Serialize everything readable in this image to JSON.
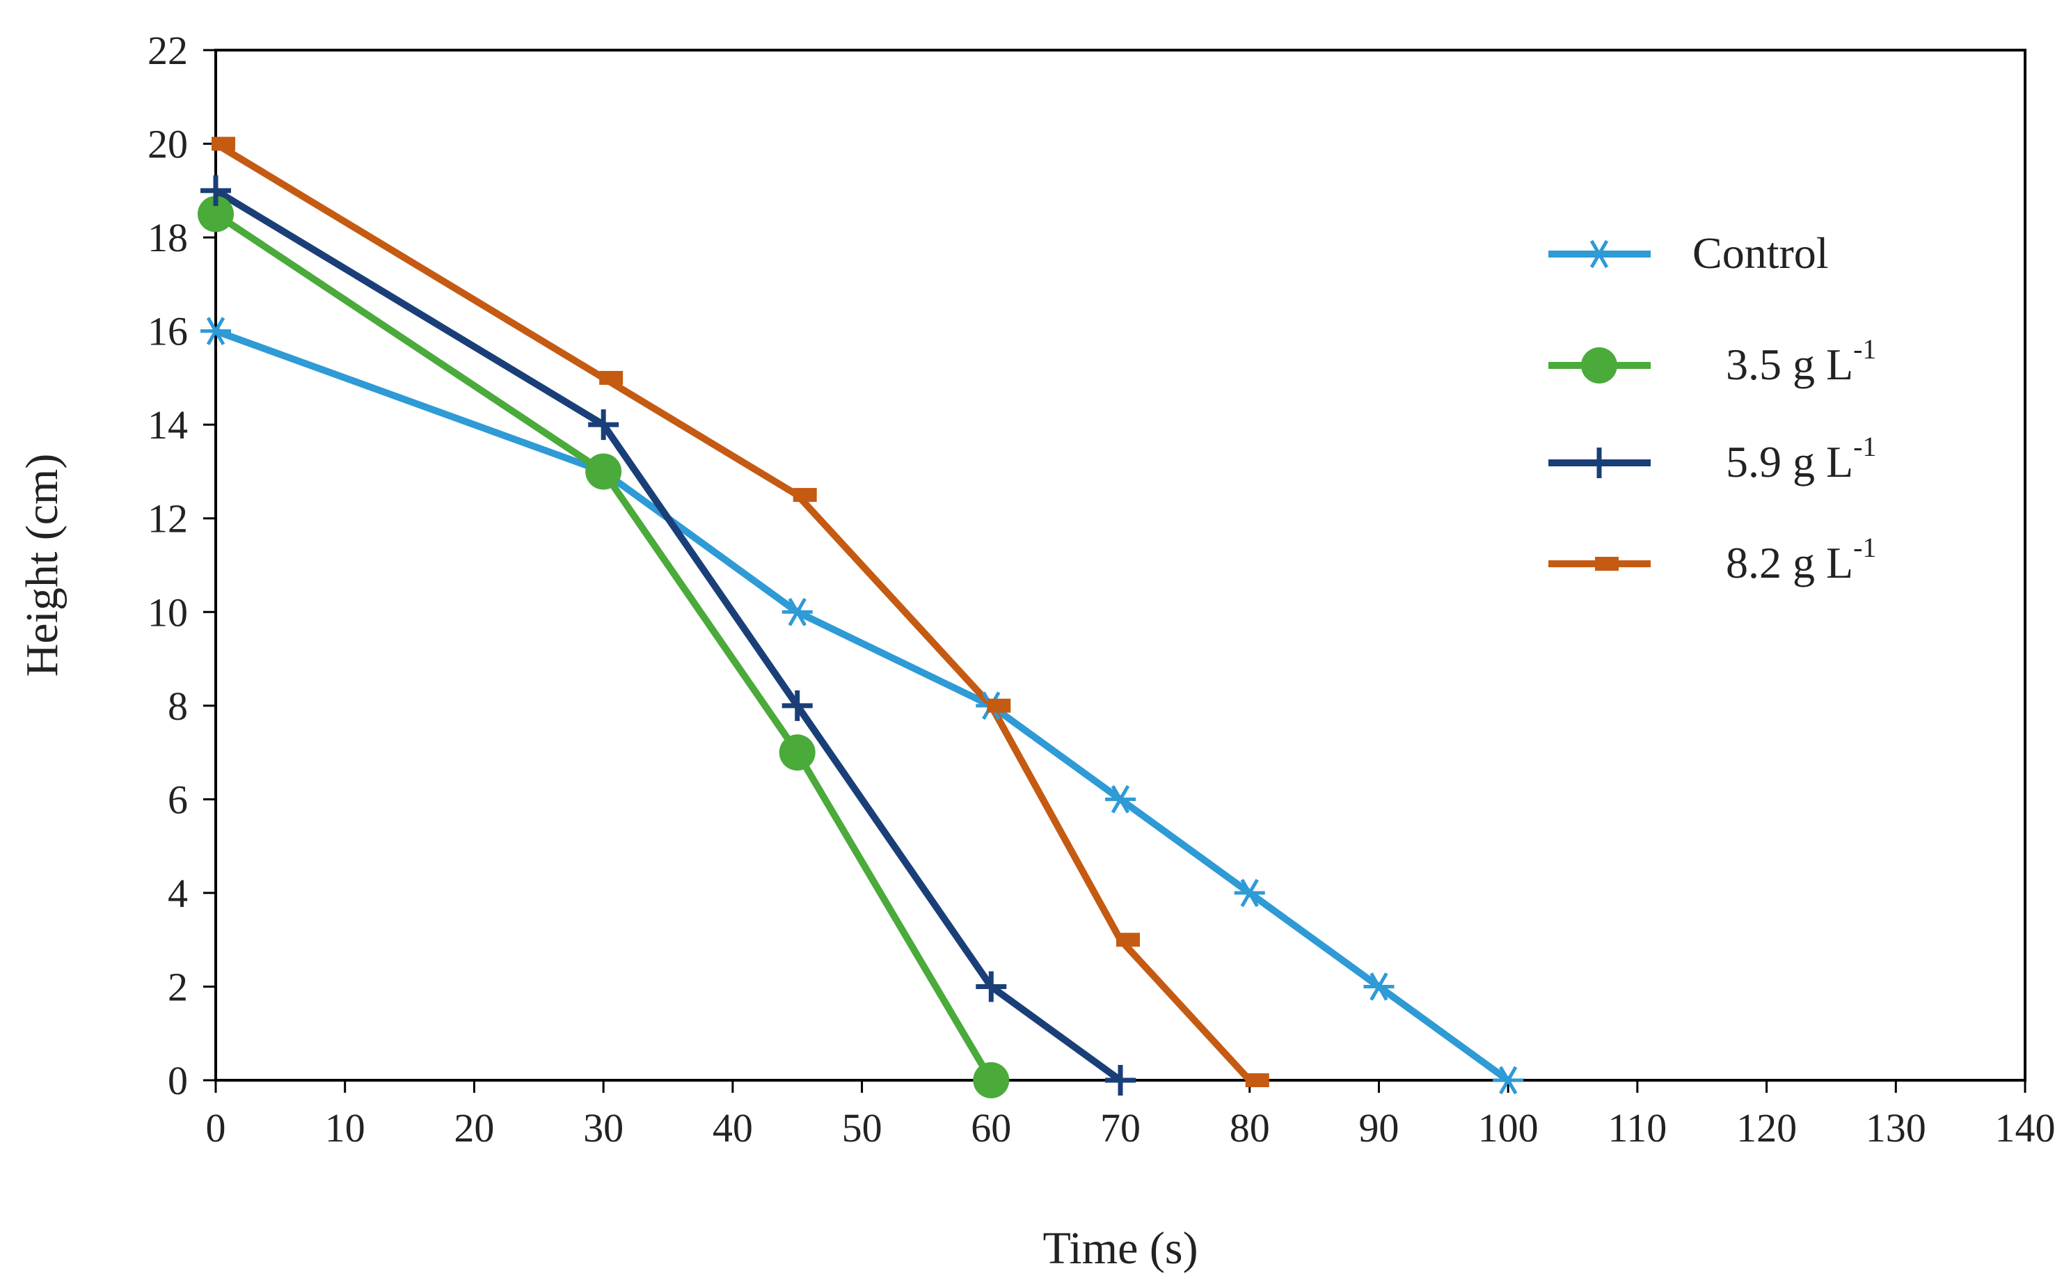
{
  "chart_data": {
    "type": "line",
    "title": "",
    "xlabel": "Time (s)",
    "ylabel": "Height (cm)",
    "xlim": [
      0,
      140
    ],
    "ylim": [
      0,
      22
    ],
    "xticks": [
      0,
      10,
      20,
      30,
      40,
      50,
      60,
      70,
      80,
      90,
      100,
      110,
      120,
      130,
      140
    ],
    "yticks": [
      0,
      2,
      4,
      6,
      8,
      10,
      12,
      14,
      16,
      18,
      20,
      22
    ],
    "grid": false,
    "legend_position": "right",
    "series": [
      {
        "name": "Control",
        "legend_text": "Control",
        "legend_sup": "",
        "color": "#2e9ad6",
        "marker": "asterisk",
        "x": [
          0,
          30,
          45,
          60,
          70,
          80,
          90,
          100
        ],
        "y": [
          16,
          13,
          10,
          8,
          6,
          4,
          2,
          0
        ]
      },
      {
        "name": "3.5 g L-1",
        "legend_text": "3.5 g L",
        "legend_sup": "-1",
        "color": "#4aaa3a",
        "marker": "circle",
        "x": [
          0,
          30,
          45,
          60
        ],
        "y": [
          18.5,
          13,
          7,
          0
        ]
      },
      {
        "name": "5.9 g L-1",
        "legend_text": "5.9 g L",
        "legend_sup": "-1",
        "color": "#1a3f78",
        "marker": "plus",
        "x": [
          0,
          30,
          45,
          60,
          70
        ],
        "y": [
          19,
          14,
          8,
          2,
          0
        ]
      },
      {
        "name": "8.2 g L-1",
        "legend_text": "8.2 g L",
        "legend_sup": "-1",
        "color": "#c55a12",
        "marker": "dash",
        "x": [
          0,
          30,
          45,
          60,
          70,
          80
        ],
        "y": [
          20,
          15,
          12.5,
          8,
          3,
          0
        ]
      }
    ]
  }
}
